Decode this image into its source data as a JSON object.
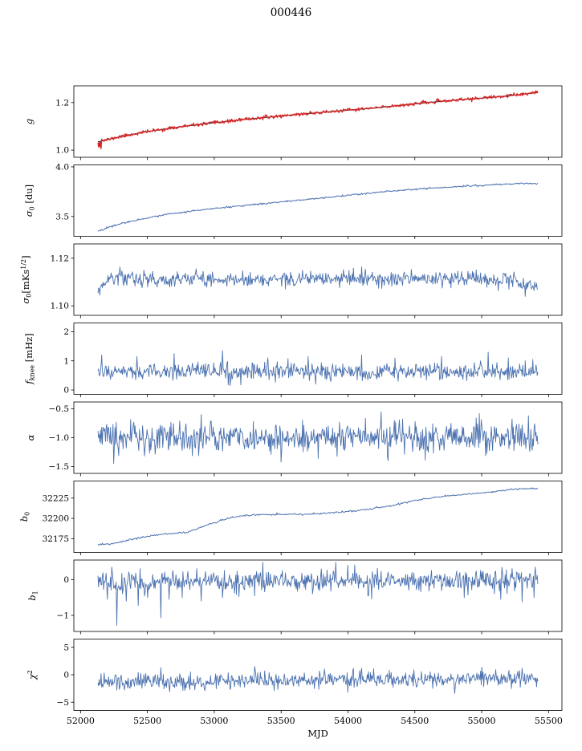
{
  "title": "000446",
  "colors": {
    "line": "#4c72b0",
    "fit": "#262626",
    "data_red": "#d62728",
    "axis": "#000000",
    "background": "#ffffff"
  },
  "chart_data": {
    "type": "line",
    "title": "000446",
    "xlabel": "MJD",
    "xlim": [
      51950,
      55600
    ],
    "x_range_data": [
      52130,
      55420
    ],
    "xticks": [
      {
        "v": 52000,
        "l": "52000"
      },
      {
        "v": 52500,
        "l": "52500"
      },
      {
        "v": 53000,
        "l": "53000"
      },
      {
        "v": 53500,
        "l": "53500"
      },
      {
        "v": 54000,
        "l": "54000"
      },
      {
        "v": 54500,
        "l": "54500"
      },
      {
        "v": 55000,
        "l": "55000"
      },
      {
        "v": 55500,
        "l": "55500"
      }
    ],
    "panels": [
      {
        "id": "g",
        "ylabel": [
          {
            "t": "g",
            "s": "i"
          }
        ],
        "ylim": [
          0.97,
          1.27
        ],
        "yticks": [
          {
            "v": 1.0,
            "l": "1.0"
          },
          {
            "v": 1.2,
            "l": "1.2"
          }
        ],
        "ylabel_offset": 52,
        "series": [
          {
            "name": "fit",
            "color": "#262626",
            "lw": 1.1,
            "n": 220,
            "noise": 0,
            "seed": 1,
            "trend": [
              [
                52130,
                1.035
              ],
              [
                52300,
                1.057
              ],
              [
                52500,
                1.078
              ],
              [
                52750,
                1.098
              ],
              [
                53000,
                1.115
              ],
              [
                53300,
                1.133
              ],
              [
                53600,
                1.149
              ],
              [
                53900,
                1.163
              ],
              [
                54200,
                1.177
              ],
              [
                54500,
                1.195
              ],
              [
                54800,
                1.21
              ],
              [
                55100,
                1.223
              ],
              [
                55250,
                1.231
              ],
              [
                55420,
                1.242
              ]
            ]
          },
          {
            "name": "data",
            "color": "#d62728",
            "lw": 1.3,
            "n": 700,
            "noise": 0.0035,
            "seed": 11,
            "trend": [
              [
                52130,
                1.035
              ],
              [
                52300,
                1.057
              ],
              [
                52500,
                1.078
              ],
              [
                52750,
                1.098
              ],
              [
                53000,
                1.115
              ],
              [
                53300,
                1.133
              ],
              [
                53600,
                1.149
              ],
              [
                53900,
                1.163
              ],
              [
                54200,
                1.177
              ],
              [
                54500,
                1.195
              ],
              [
                54800,
                1.21
              ],
              [
                55100,
                1.223
              ],
              [
                55250,
                1.231
              ],
              [
                55420,
                1.242
              ]
            ],
            "blobs": [
              {
                "x0": 52131,
                "x1": 52160,
                "y0": 1.0,
                "y1": 1.048
              }
            ]
          }
        ]
      },
      {
        "id": "sigma0-du",
        "ylabel": [
          {
            "t": "σ",
            "s": "i"
          },
          {
            "t": "0",
            "s": "sub"
          },
          {
            "t": " [du]",
            "s": "n"
          }
        ],
        "ylim": [
          3.3,
          4.02
        ],
        "yticks": [
          {
            "v": 3.5,
            "l": "3.5"
          },
          {
            "v": 4.0,
            "l": "4.0"
          }
        ],
        "ylabel_offset": 52,
        "series": [
          {
            "name": "sigma0",
            "color": "#4c72b0",
            "lw": 1.0,
            "n": 600,
            "noise": 0.004,
            "seed": 22,
            "trend": [
              [
                52130,
                3.35
              ],
              [
                52250,
                3.41
              ],
              [
                52400,
                3.46
              ],
              [
                52600,
                3.51
              ],
              [
                52800,
                3.55
              ],
              [
                53000,
                3.58
              ],
              [
                53300,
                3.62
              ],
              [
                53600,
                3.66
              ],
              [
                53900,
                3.7
              ],
              [
                54200,
                3.74
              ],
              [
                54500,
                3.775
              ],
              [
                54800,
                3.8
              ],
              [
                55100,
                3.82
              ],
              [
                55300,
                3.835
              ],
              [
                55420,
                3.83
              ]
            ]
          }
        ]
      },
      {
        "id": "sigma0-mks",
        "ylabel": [
          {
            "t": "σ",
            "s": "i"
          },
          {
            "t": "0",
            "s": "sub"
          },
          {
            "t": "[mKs",
            "s": "n"
          },
          {
            "t": "1/2",
            "s": "sup"
          },
          {
            "t": "]",
            "s": "n"
          }
        ],
        "ylim": [
          1.096,
          1.126
        ],
        "yticks": [
          {
            "v": 1.1,
            "l": "1.10"
          },
          {
            "v": 1.12,
            "l": "1.12"
          }
        ],
        "ylabel_offset": 56,
        "series": [
          {
            "name": "sigma0-rate",
            "color": "#4c72b0",
            "lw": 0.9,
            "n": 700,
            "noise": 0.0016,
            "seed": 33,
            "trend": [
              [
                52130,
                1.1055
              ],
              [
                52190,
                1.1105
              ],
              [
                52300,
                1.1125
              ],
              [
                52450,
                1.1108
              ],
              [
                52700,
                1.1112
              ],
              [
                53000,
                1.111
              ],
              [
                53500,
                1.1112
              ],
              [
                54000,
                1.1113
              ],
              [
                54500,
                1.1112
              ],
              [
                55000,
                1.1115
              ],
              [
                55250,
                1.111
              ],
              [
                55350,
                1.1075
              ],
              [
                55420,
                1.1085
              ]
            ]
          }
        ]
      },
      {
        "id": "fknee",
        "ylabel": [
          {
            "t": "f",
            "s": "i"
          },
          {
            "t": "knee",
            "s": "sub"
          },
          {
            "t": " [mHz]",
            "s": "n"
          }
        ],
        "ylim": [
          -0.15,
          2.3
        ],
        "yticks": [
          {
            "v": 0,
            "l": "0"
          },
          {
            "v": 1,
            "l": "1"
          },
          {
            "v": 2,
            "l": "2"
          }
        ],
        "ylabel_offset": 52,
        "series": [
          {
            "name": "fknee",
            "color": "#4c72b0",
            "lw": 0.9,
            "n": 700,
            "noise": 0.14,
            "seed": 44,
            "trend": [
              [
                52130,
                0.62
              ],
              [
                55420,
                0.62
              ]
            ],
            "spikes": [
              [
                52160,
                1.2
              ],
              [
                52420,
                1.15
              ],
              [
                52700,
                1.25
              ],
              [
                53060,
                1.35
              ],
              [
                53120,
                0.15
              ],
              [
                53400,
                1.1
              ],
              [
                53700,
                1.15
              ],
              [
                53760,
                0.2
              ],
              [
                54100,
                1.2
              ],
              [
                54350,
                1.1
              ],
              [
                54700,
                1.15
              ],
              [
                55050,
                1.3
              ],
              [
                55200,
                1.1
              ],
              [
                55380,
                1.05
              ]
            ]
          }
        ]
      },
      {
        "id": "alpha",
        "ylabel": [
          {
            "t": "α",
            "s": "i"
          }
        ],
        "ylim": [
          -1.62,
          -0.38
        ],
        "yticks": [
          {
            "v": -0.5,
            "l": "−0.5"
          },
          {
            "v": -1.0,
            "l": "−1.0"
          },
          {
            "v": -1.5,
            "l": "−1.5"
          }
        ],
        "ylabel_offset": 50,
        "series": [
          {
            "name": "alpha",
            "color": "#4c72b0",
            "lw": 0.9,
            "n": 700,
            "noise": 0.13,
            "seed": 55,
            "trend": [
              [
                52130,
                -1.0
              ],
              [
                55420,
                -1.0
              ]
            ],
            "spikes": [
              [
                52250,
                -1.45
              ],
              [
                52900,
                -0.6
              ],
              [
                53500,
                -1.42
              ],
              [
                54250,
                -0.55
              ],
              [
                54300,
                -1.4
              ],
              [
                54980,
                -0.58
              ],
              [
                55350,
                -0.62
              ]
            ]
          }
        ]
      },
      {
        "id": "b0",
        "ylabel": [
          {
            "t": "b",
            "s": "i"
          },
          {
            "t": "0",
            "s": "sub"
          }
        ],
        "ylim": [
          32158,
          32246
        ],
        "yticks": [
          {
            "v": 32175,
            "l": "32175"
          },
          {
            "v": 32200,
            "l": "32200"
          },
          {
            "v": 32225,
            "l": "32225"
          }
        ],
        "ylabel_offset": 58,
        "series": [
          {
            "name": "b0",
            "color": "#4c72b0",
            "lw": 1.0,
            "n": 500,
            "noise": 0.5,
            "seed": 66,
            "trend": [
              [
                52130,
                32167
              ],
              [
                52250,
                32169
              ],
              [
                52350,
                32173
              ],
              [
                52500,
                32178
              ],
              [
                52650,
                32181
              ],
              [
                52800,
                32183
              ],
              [
                52950,
                32192
              ],
              [
                53100,
                32200
              ],
              [
                53250,
                32204
              ],
              [
                53450,
                32205
              ],
              [
                53700,
                32205
              ],
              [
                53900,
                32207
              ],
              [
                54100,
                32210
              ],
              [
                54300,
                32215
              ],
              [
                54500,
                32222
              ],
              [
                54700,
                32227
              ],
              [
                54900,
                32230
              ],
              [
                55100,
                32233
              ],
              [
                55250,
                32236
              ],
              [
                55420,
                32237
              ]
            ]
          }
        ]
      },
      {
        "id": "b1",
        "ylabel": [
          {
            "t": "b",
            "s": "i"
          },
          {
            "t": "1",
            "s": "sub"
          }
        ],
        "ylim": [
          -1.45,
          0.55
        ],
        "yticks": [
          {
            "v": 0,
            "l": "0"
          },
          {
            "v": -1,
            "l": "−1"
          }
        ],
        "ylabel_offset": 48,
        "series": [
          {
            "name": "b1",
            "color": "#4c72b0",
            "lw": 0.9,
            "n": 700,
            "noise": 0.15,
            "seed": 77,
            "trend": [
              [
                52130,
                -0.08
              ],
              [
                52900,
                -0.05
              ],
              [
                55420,
                -0.02
              ]
            ],
            "spikes": [
              [
                52200,
                -0.55
              ],
              [
                52270,
                -1.28
              ],
              [
                52340,
                -0.6
              ],
              [
                52430,
                -0.72
              ],
              [
                52500,
                -0.5
              ],
              [
                52600,
                -1.07
              ],
              [
                52660,
                -0.55
              ],
              [
                52760,
                -0.5
              ],
              [
                52900,
                -0.6
              ],
              [
                53060,
                -0.5
              ],
              [
                53300,
                -0.45
              ],
              [
                53800,
                0.3
              ],
              [
                54150,
                -0.45
              ],
              [
                54870,
                -0.5
              ],
              [
                55150,
                0.35
              ],
              [
                55300,
                -0.62
              ],
              [
                55390,
                -0.5
              ]
            ]
          }
        ]
      },
      {
        "id": "chi2",
        "ylabel": [
          {
            "t": "χ",
            "s": "i"
          },
          {
            "t": "2",
            "s": "sup"
          }
        ],
        "ylim": [
          -6.5,
          6.5
        ],
        "yticks": [
          {
            "v": -5,
            "l": "−5"
          },
          {
            "v": 0,
            "l": "0"
          },
          {
            "v": 5,
            "l": "5"
          }
        ],
        "ylabel_offset": 48,
        "series": [
          {
            "name": "chi2",
            "color": "#4c72b0",
            "lw": 0.9,
            "n": 700,
            "noise": 0.75,
            "seed": 88,
            "trend": [
              [
                52130,
                -1.3
              ],
              [
                53000,
                -1.1
              ],
              [
                54000,
                -0.9
              ],
              [
                55000,
                -0.7
              ],
              [
                55420,
                -0.7
              ]
            ],
            "spikes": [
              [
                52600,
                1.3
              ],
              [
                53300,
                1.5
              ],
              [
                54100,
                1.2
              ],
              [
                54800,
                -3.4
              ],
              [
                55000,
                1.4
              ],
              [
                55300,
                1.2
              ]
            ]
          }
        ]
      }
    ]
  }
}
